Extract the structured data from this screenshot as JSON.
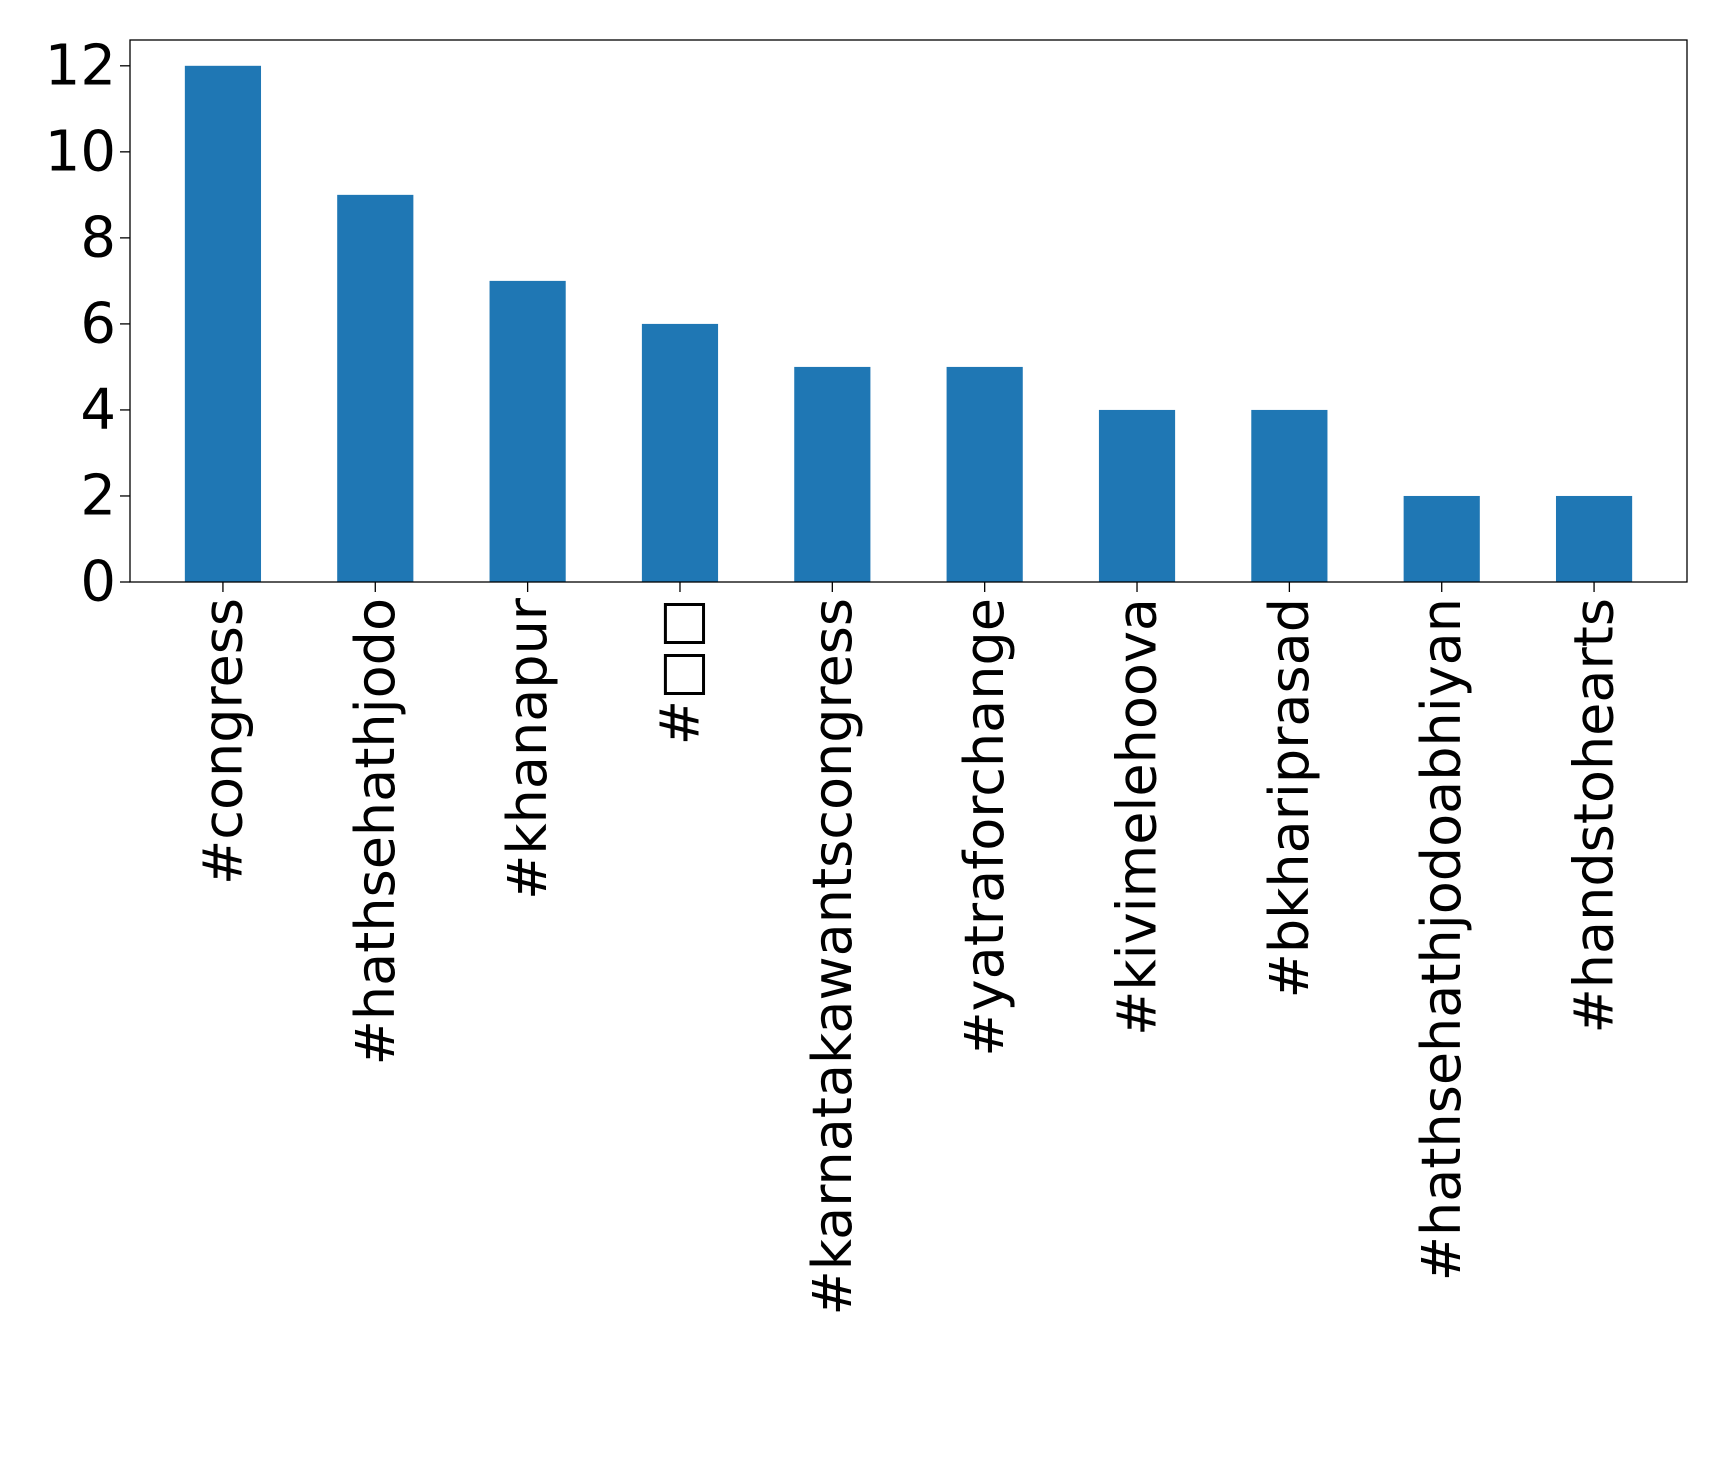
{
  "chart_data": {
    "type": "bar",
    "title": "",
    "xlabel": "",
    "ylabel": "",
    "categories": [
      "#congress",
      "#hathsehathjodo",
      "#khanapur",
      "#□□",
      "#karnatakawantscongress",
      "#yatraforchange",
      "#kivimelehoova",
      "#bkhariprasad",
      "#hathsehathjodoabhiyan",
      "#handstohearts"
    ],
    "values": [
      12,
      9,
      7,
      6,
      5,
      5,
      4,
      4,
      2,
      2
    ],
    "ylim": [
      0,
      12.6
    ],
    "yticks": [
      0,
      2,
      4,
      6,
      8,
      10,
      12
    ],
    "bar_color": "#1f77b4",
    "grid": false,
    "legend": "none"
  }
}
